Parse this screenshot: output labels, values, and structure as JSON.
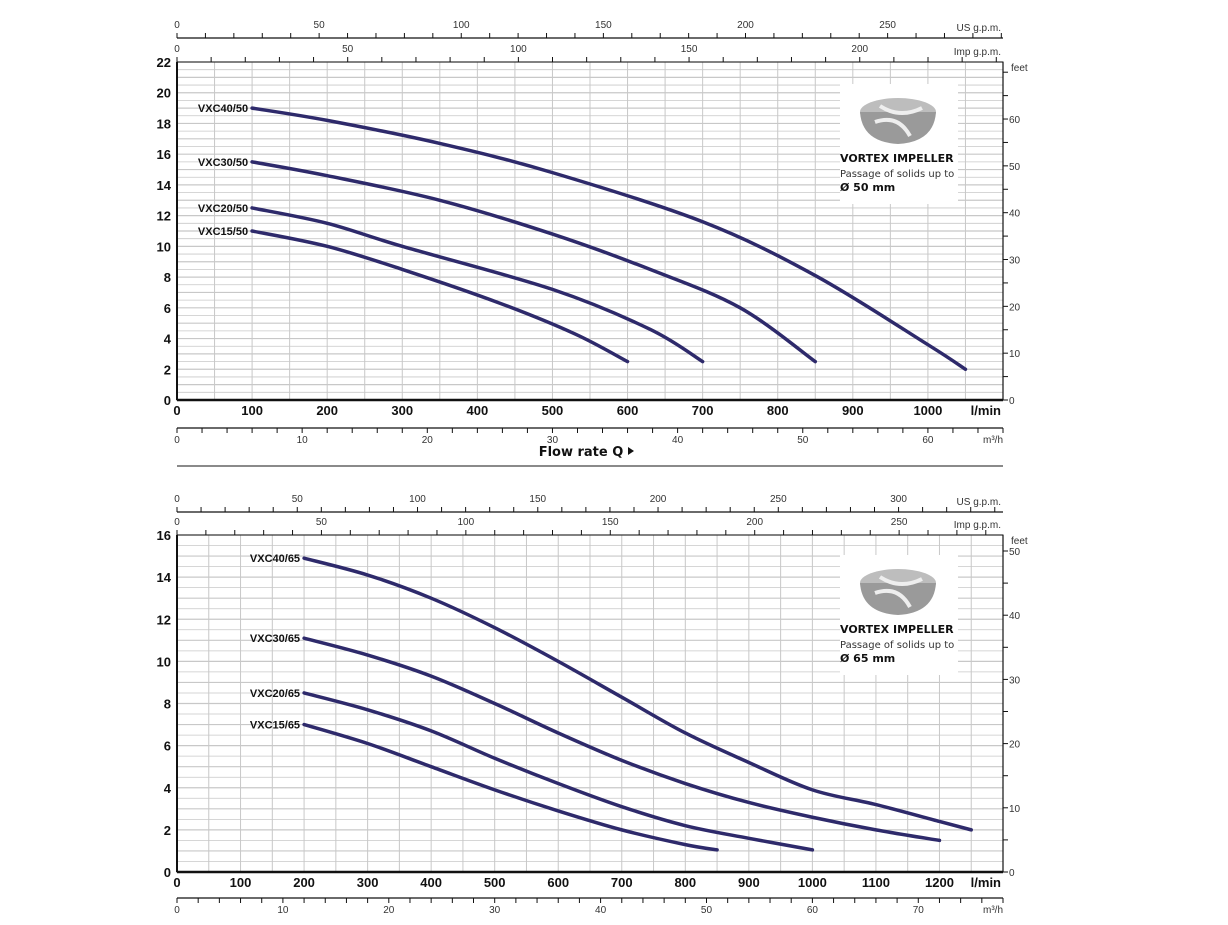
{
  "colors": {
    "curve": "#2e2a6b",
    "grid": "#c8c8c8",
    "axis": "#111111",
    "impeller": "#9a9a9a"
  },
  "chart_data": [
    {
      "type": "line",
      "title": "",
      "xlabel": "Flow rate Q",
      "flow_arrow_icon": "triangle-right-icon",
      "ylabel": "",
      "x_unit": "l/min",
      "xlim": [
        0,
        1100
      ],
      "ylim": [
        0,
        22
      ],
      "grid": true,
      "x_ticks": [
        0,
        100,
        200,
        300,
        400,
        500,
        600,
        700,
        800,
        900,
        1000
      ],
      "y_ticks": [
        0,
        2,
        4,
        6,
        8,
        10,
        12,
        14,
        16,
        18,
        20,
        22
      ],
      "right_axis": {
        "unit": "feet",
        "ticks": [
          0,
          10,
          20,
          30,
          40,
          50,
          60
        ]
      },
      "top_axes": [
        {
          "unit": "US g.p.m.",
          "ticks": [
            0,
            50,
            100,
            150,
            200,
            250
          ]
        },
        {
          "unit": "Imp g.p.m.",
          "ticks": [
            0,
            50,
            100,
            150,
            200
          ]
        }
      ],
      "bottom_axis": {
        "unit": "m³/h",
        "ticks": [
          0,
          10,
          20,
          30,
          40,
          50,
          60
        ]
      },
      "info_box": {
        "title": "VORTEX IMPELLER",
        "line1": "Passage of solids up to",
        "line2": "Ø 50 mm",
        "icon": "vortex-impeller-icon"
      },
      "series": [
        {
          "name": "VXC40/50",
          "x": [
            100,
            200,
            350,
            500,
            700,
            850,
            1000,
            1050
          ],
          "y": [
            19,
            18.2,
            16.7,
            14.8,
            11.6,
            8.1,
            3.6,
            2.0
          ]
        },
        {
          "name": "VXC30/50",
          "x": [
            100,
            200,
            350,
            500,
            630,
            750,
            850
          ],
          "y": [
            15.5,
            14.6,
            13,
            10.8,
            8.5,
            6.0,
            2.5
          ]
        },
        {
          "name": "VXC20/50",
          "x": [
            100,
            200,
            300,
            500,
            630,
            700
          ],
          "y": [
            12.5,
            11.5,
            10.0,
            7.2,
            4.6,
            2.5
          ]
        },
        {
          "name": "VXC15/50",
          "x": [
            100,
            200,
            300,
            430,
            530,
            600
          ],
          "y": [
            11,
            10.0,
            8.5,
            6.3,
            4.3,
            2.5
          ]
        }
      ]
    },
    {
      "type": "line",
      "title": "",
      "xlabel": "",
      "ylabel": "",
      "x_unit": "l/min",
      "xlim": [
        0,
        1300
      ],
      "ylim": [
        0,
        16
      ],
      "grid": true,
      "x_ticks": [
        0,
        100,
        200,
        300,
        400,
        500,
        600,
        700,
        800,
        900,
        1000,
        1100,
        1200
      ],
      "y_ticks": [
        0,
        2,
        4,
        6,
        8,
        10,
        12,
        14,
        16
      ],
      "right_axis": {
        "unit": "feet",
        "ticks": [
          0,
          10,
          20,
          30,
          40,
          50
        ]
      },
      "top_axes": [
        {
          "unit": "US g.p.m.",
          "ticks": [
            0,
            50,
            100,
            150,
            200,
            250,
            300
          ]
        },
        {
          "unit": "Imp g.p.m.",
          "ticks": [
            0,
            50,
            100,
            150,
            200,
            250
          ]
        }
      ],
      "bottom_axis": {
        "unit": "m³/h",
        "ticks": [
          0,
          10,
          20,
          30,
          40,
          50,
          60,
          70
        ]
      },
      "info_box": {
        "title": "VORTEX IMPELLER",
        "line1": "Passage of solids up to",
        "line2": "Ø 65 mm",
        "icon": "vortex-impeller-icon"
      },
      "series": [
        {
          "name": "VXC40/65",
          "x": [
            200,
            300,
            400,
            500,
            600,
            700,
            800,
            900,
            1000,
            1100,
            1200,
            1250
          ],
          "y": [
            14.9,
            14.1,
            13.0,
            11.6,
            10.0,
            8.3,
            6.6,
            5.2,
            3.9,
            3.2,
            2.4,
            2.0
          ]
        },
        {
          "name": "VXC30/65",
          "x": [
            200,
            300,
            400,
            500,
            600,
            700,
            800,
            900,
            1000,
            1100,
            1200
          ],
          "y": [
            11.1,
            10.3,
            9.3,
            8.0,
            6.6,
            5.3,
            4.2,
            3.3,
            2.6,
            2.0,
            1.5
          ]
        },
        {
          "name": "VXC20/65",
          "x": [
            200,
            300,
            400,
            500,
            600,
            700,
            800,
            900,
            1000
          ],
          "y": [
            8.5,
            7.7,
            6.7,
            5.4,
            4.2,
            3.1,
            2.2,
            1.6,
            1.05
          ]
        },
        {
          "name": "VXC15/65",
          "x": [
            200,
            300,
            400,
            500,
            600,
            700,
            800,
            850
          ],
          "y": [
            7.0,
            6.1,
            5.0,
            3.9,
            2.9,
            2.0,
            1.3,
            1.05
          ]
        }
      ]
    }
  ]
}
